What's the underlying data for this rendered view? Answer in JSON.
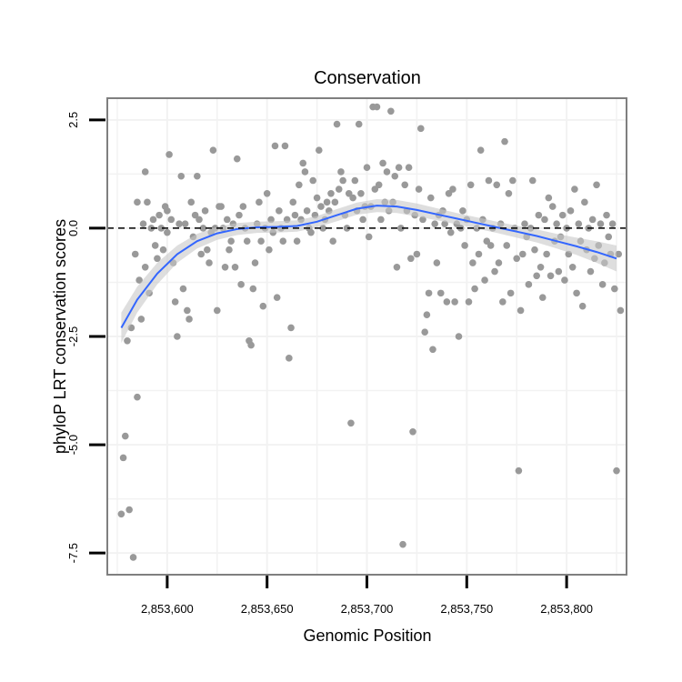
{
  "chart_data": {
    "type": "scatter",
    "title": "Conservation",
    "xlabel": "Genomic Position",
    "ylabel": "phyloP LRT conservation scores",
    "xlim": [
      2853570,
      2853830
    ],
    "ylim": [
      -8.0,
      3.0
    ],
    "x_ticks": [
      2853600,
      2853650,
      2853700,
      2853750,
      2853800
    ],
    "x_tick_labels": [
      "2,853,600",
      "2,853,650",
      "2,853,700",
      "2,853,750",
      "2,853,800"
    ],
    "y_ticks": [
      -7.5,
      -5.0,
      -2.5,
      0.0,
      2.5
    ],
    "y_tick_labels": [
      "-7.5",
      "-5.0",
      "-2.5",
      "0.0",
      "2.5"
    ],
    "reference_line": {
      "y": 0.0,
      "style": "dashed",
      "color": "#000000"
    },
    "colors": {
      "points": "#999999",
      "smooth": "#3366ff",
      "band": "#c8c8c8",
      "frame": "#7f7f7f",
      "grid": "#f2f2f2"
    },
    "points": [
      [
        2853577,
        -6.6
      ],
      [
        2853578,
        -5.3
      ],
      [
        2853579,
        -4.8
      ],
      [
        2853580,
        -2.6
      ],
      [
        2853581,
        -6.5
      ],
      [
        2853582,
        -2.3
      ],
      [
        2853583,
        -7.6
      ],
      [
        2853584,
        -0.6
      ],
      [
        2853585,
        -3.9
      ],
      [
        2853585,
        0.6
      ],
      [
        2853586,
        -1.2
      ],
      [
        2853587,
        -2.1
      ],
      [
        2853588,
        0.1
      ],
      [
        2853589,
        1.3
      ],
      [
        2853589,
        -0.9
      ],
      [
        2853590,
        0.6
      ],
      [
        2853591,
        -1.5
      ],
      [
        2853592,
        0.0
      ],
      [
        2853593,
        0.2
      ],
      [
        2853594,
        -0.4
      ],
      [
        2853595,
        -0.7
      ],
      [
        2853596,
        0.3
      ],
      [
        2853597,
        0.0
      ],
      [
        2853598,
        -0.5
      ],
      [
        2853599,
        0.5
      ],
      [
        2853600,
        0.4
      ],
      [
        2853600,
        -0.1
      ],
      [
        2853601,
        1.7
      ],
      [
        2853602,
        0.2
      ],
      [
        2853603,
        -0.8
      ],
      [
        2853604,
        -1.7
      ],
      [
        2853605,
        -2.5
      ],
      [
        2853606,
        0.1
      ],
      [
        2853607,
        1.2
      ],
      [
        2853608,
        -1.4
      ],
      [
        2853609,
        0.1
      ],
      [
        2853610,
        -1.9
      ],
      [
        2853611,
        -2.1
      ],
      [
        2853612,
        0.6
      ],
      [
        2853613,
        -0.2
      ],
      [
        2853614,
        0.3
      ],
      [
        2853615,
        1.2
      ],
      [
        2853616,
        0.2
      ],
      [
        2853617,
        -0.6
      ],
      [
        2853618,
        0.0
      ],
      [
        2853619,
        0.4
      ],
      [
        2853620,
        -0.5
      ],
      [
        2853621,
        -0.8
      ],
      [
        2853622,
        -0.1
      ],
      [
        2853623,
        1.8
      ],
      [
        2853624,
        0.0
      ],
      [
        2853625,
        -1.9
      ],
      [
        2853626,
        0.5
      ],
      [
        2853627,
        0.5
      ],
      [
        2853628,
        0.0
      ],
      [
        2853629,
        -0.9
      ],
      [
        2853630,
        0.2
      ],
      [
        2853631,
        -0.5
      ],
      [
        2853632,
        -0.3
      ],
      [
        2853633,
        0.1
      ],
      [
        2853634,
        -0.9
      ],
      [
        2853635,
        1.6
      ],
      [
        2853636,
        0.3
      ],
      [
        2853637,
        -1.3
      ],
      [
        2853638,
        0.5
      ],
      [
        2853639,
        0.0
      ],
      [
        2853640,
        -0.3
      ],
      [
        2853641,
        -2.6
      ],
      [
        2853642,
        -2.7
      ],
      [
        2853643,
        -1.4
      ],
      [
        2853644,
        -0.8
      ],
      [
        2853645,
        0.1
      ],
      [
        2853646,
        0.6
      ],
      [
        2853647,
        -0.3
      ],
      [
        2853648,
        -1.8
      ],
      [
        2853649,
        0.0
      ],
      [
        2853650,
        0.8
      ],
      [
        2853651,
        -0.5
      ],
      [
        2853652,
        0.2
      ],
      [
        2853653,
        -0.1
      ],
      [
        2853654,
        1.9
      ],
      [
        2853655,
        -1.6
      ],
      [
        2853656,
        0.4
      ],
      [
        2853657,
        0.0
      ],
      [
        2853658,
        -0.3
      ],
      [
        2853659,
        1.9
      ],
      [
        2853660,
        0.2
      ],
      [
        2853661,
        -3.0
      ],
      [
        2853662,
        -2.3
      ],
      [
        2853663,
        0.6
      ],
      [
        2853664,
        0.3
      ],
      [
        2853665,
        -0.3
      ],
      [
        2853666,
        1.0
      ],
      [
        2853667,
        0.2
      ],
      [
        2853668,
        1.5
      ],
      [
        2853669,
        1.3
      ],
      [
        2853670,
        0.4
      ],
      [
        2853671,
        0.0
      ],
      [
        2853672,
        -0.1
      ],
      [
        2853673,
        1.1
      ],
      [
        2853674,
        0.3
      ],
      [
        2853675,
        0.7
      ],
      [
        2853676,
        1.8
      ],
      [
        2853677,
        0.5
      ],
      [
        2853678,
        0.0
      ],
      [
        2853679,
        0.2
      ],
      [
        2853680,
        0.6
      ],
      [
        2853681,
        0.4
      ],
      [
        2853682,
        0.8
      ],
      [
        2853683,
        -0.3
      ],
      [
        2853684,
        0.6
      ],
      [
        2853685,
        2.4
      ],
      [
        2853686,
        0.9
      ],
      [
        2853687,
        1.3
      ],
      [
        2853688,
        1.1
      ],
      [
        2853689,
        0.3
      ],
      [
        2853690,
        0.0
      ],
      [
        2853691,
        0.8
      ],
      [
        2853692,
        -4.5
      ],
      [
        2853693,
        0.7
      ],
      [
        2853694,
        1.1
      ],
      [
        2853695,
        0.4
      ],
      [
        2853696,
        2.4
      ],
      [
        2853697,
        0.8
      ],
      [
        2853698,
        0.2
      ],
      [
        2853699,
        0.5
      ],
      [
        2853700,
        1.4
      ],
      [
        2853701,
        -0.2
      ],
      [
        2853702,
        0.5
      ],
      [
        2853703,
        2.8
      ],
      [
        2853704,
        0.9
      ],
      [
        2853705,
        2.8
      ],
      [
        2853706,
        1.0
      ],
      [
        2853707,
        0.2
      ],
      [
        2853708,
        1.5
      ],
      [
        2853709,
        0.6
      ],
      [
        2853710,
        1.3
      ],
      [
        2853711,
        0.4
      ],
      [
        2853712,
        2.7
      ],
      [
        2853713,
        0.6
      ],
      [
        2853714,
        1.2
      ],
      [
        2853715,
        -0.9
      ],
      [
        2853716,
        1.4
      ],
      [
        2853717,
        0.0
      ],
      [
        2853718,
        -7.3
      ],
      [
        2853719,
        1.0
      ],
      [
        2853720,
        0.4
      ],
      [
        2853721,
        1.4
      ],
      [
        2853722,
        -0.7
      ],
      [
        2853723,
        -4.7
      ],
      [
        2853724,
        0.3
      ],
      [
        2853725,
        -0.6
      ],
      [
        2853726,
        0.9
      ],
      [
        2853727,
        2.3
      ],
      [
        2853728,
        0.2
      ],
      [
        2853729,
        -2.4
      ],
      [
        2853730,
        -2.0
      ],
      [
        2853731,
        -1.5
      ],
      [
        2853732,
        0.7
      ],
      [
        2853733,
        -2.8
      ],
      [
        2853734,
        0.1
      ],
      [
        2853735,
        -0.8
      ],
      [
        2853736,
        0.3
      ],
      [
        2853737,
        -1.5
      ],
      [
        2853738,
        0.4
      ],
      [
        2853739,
        0.1
      ],
      [
        2853740,
        -1.7
      ],
      [
        2853741,
        0.8
      ],
      [
        2853742,
        -0.1
      ],
      [
        2853743,
        0.9
      ],
      [
        2853744,
        -1.7
      ],
      [
        2853745,
        0.1
      ],
      [
        2853746,
        -2.5
      ],
      [
        2853747,
        0.0
      ],
      [
        2853748,
        0.4
      ],
      [
        2853749,
        -0.4
      ],
      [
        2853750,
        0.2
      ],
      [
        2853751,
        -1.7
      ],
      [
        2853752,
        1.0
      ],
      [
        2853753,
        -0.8
      ],
      [
        2853754,
        -1.4
      ],
      [
        2853755,
        0.0
      ],
      [
        2853756,
        -0.6
      ],
      [
        2853757,
        1.8
      ],
      [
        2853758,
        0.2
      ],
      [
        2853759,
        -1.2
      ],
      [
        2853760,
        -0.3
      ],
      [
        2853761,
        1.1
      ],
      [
        2853762,
        -0.4
      ],
      [
        2853763,
        0.0
      ],
      [
        2853764,
        -1.0
      ],
      [
        2853765,
        1.0
      ],
      [
        2853766,
        -0.8
      ],
      [
        2853767,
        0.1
      ],
      [
        2853768,
        -1.7
      ],
      [
        2853769,
        2.0
      ],
      [
        2853770,
        -0.4
      ],
      [
        2853771,
        0.8
      ],
      [
        2853772,
        -1.5
      ],
      [
        2853773,
        1.1
      ],
      [
        2853774,
        0.0
      ],
      [
        2853775,
        -0.7
      ],
      [
        2853776,
        -5.6
      ],
      [
        2853777,
        -1.9
      ],
      [
        2853778,
        -0.6
      ],
      [
        2853779,
        0.1
      ],
      [
        2853780,
        -0.2
      ],
      [
        2853781,
        -1.3
      ],
      [
        2853782,
        0.0
      ],
      [
        2853783,
        1.1
      ],
      [
        2853784,
        -0.5
      ],
      [
        2853785,
        -1.1
      ],
      [
        2853786,
        0.3
      ],
      [
        2853787,
        -0.9
      ],
      [
        2853788,
        -1.6
      ],
      [
        2853789,
        0.2
      ],
      [
        2853790,
        -0.6
      ],
      [
        2853791,
        0.7
      ],
      [
        2853792,
        -1.1
      ],
      [
        2853793,
        0.5
      ],
      [
        2853794,
        -0.3
      ],
      [
        2853795,
        0.1
      ],
      [
        2853796,
        -1.0
      ],
      [
        2853797,
        -0.2
      ],
      [
        2853798,
        0.3
      ],
      [
        2853799,
        -1.2
      ],
      [
        2853800,
        0.0
      ],
      [
        2853801,
        -0.6
      ],
      [
        2853802,
        0.4
      ],
      [
        2853803,
        -0.9
      ],
      [
        2853804,
        0.9
      ],
      [
        2853805,
        -1.5
      ],
      [
        2853806,
        0.1
      ],
      [
        2853807,
        -0.3
      ],
      [
        2853808,
        -1.8
      ],
      [
        2853809,
        0.6
      ],
      [
        2853810,
        -0.5
      ],
      [
        2853811,
        0.0
      ],
      [
        2853812,
        -1.0
      ],
      [
        2853813,
        0.2
      ],
      [
        2853814,
        -0.7
      ],
      [
        2853815,
        1.0
      ],
      [
        2853816,
        -0.4
      ],
      [
        2853817,
        0.1
      ],
      [
        2853818,
        -1.3
      ],
      [
        2853819,
        -0.8
      ],
      [
        2853820,
        0.3
      ],
      [
        2853821,
        -0.2
      ],
      [
        2853822,
        -0.6
      ],
      [
        2853823,
        0.1
      ],
      [
        2853824,
        -1.4
      ],
      [
        2853825,
        -5.6
      ],
      [
        2853826,
        -0.6
      ],
      [
        2853827,
        -1.9
      ]
    ],
    "smooth": {
      "x": [
        2853577,
        2853585,
        2853595,
        2853605,
        2853615,
        2853625,
        2853635,
        2853645,
        2853655,
        2853665,
        2853675,
        2853685,
        2853695,
        2853705,
        2853715,
        2853725,
        2853735,
        2853745,
        2853755,
        2853765,
        2853775,
        2853785,
        2853795,
        2853805,
        2853815,
        2853825
      ],
      "y": [
        -2.3,
        -1.65,
        -1.05,
        -0.6,
        -0.3,
        -0.12,
        -0.02,
        0.02,
        0.03,
        0.05,
        0.15,
        0.3,
        0.45,
        0.52,
        0.5,
        0.42,
        0.32,
        0.22,
        0.12,
        0.02,
        -0.08,
        -0.18,
        -0.3,
        -0.42,
        -0.55,
        -0.7
      ],
      "se": [
        0.35,
        0.3,
        0.25,
        0.2,
        0.17,
        0.15,
        0.14,
        0.13,
        0.13,
        0.13,
        0.13,
        0.14,
        0.14,
        0.15,
        0.15,
        0.15,
        0.14,
        0.13,
        0.13,
        0.13,
        0.14,
        0.15,
        0.17,
        0.2,
        0.25,
        0.3
      ]
    }
  }
}
